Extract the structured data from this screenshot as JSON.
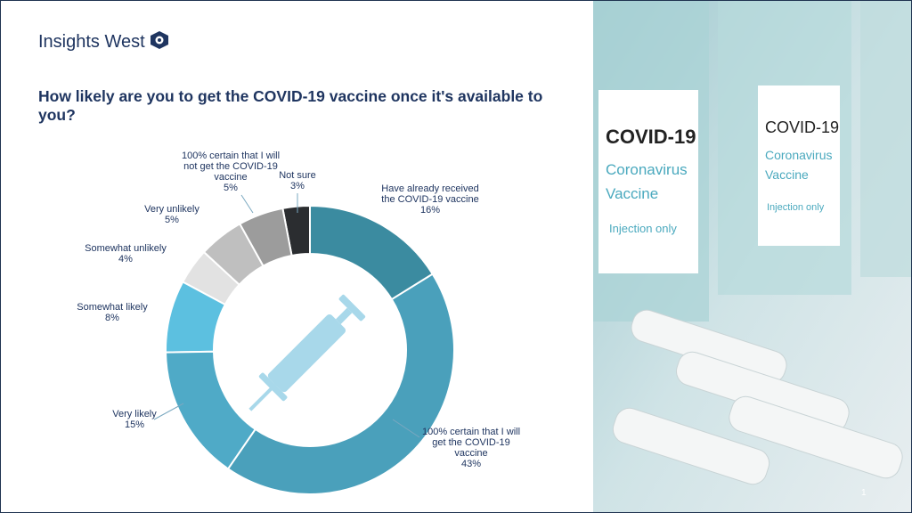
{
  "brand": "Insights West",
  "page_number": "1",
  "photo": {
    "label_line1": "COVID-19",
    "label_line2": "Coronavirus",
    "label_line3": "Vaccine",
    "label_line4": "Injection only"
  },
  "chart_data": {
    "type": "donut",
    "title": "How likely are you to get the COVID-19 vaccine once it's available to you?",
    "categories": [
      "Have already received the COVID-19 vaccine",
      "100% certain that I will get the COVID-19 vaccine",
      "Very likely",
      "Somewhat likely",
      "Somewhat unlikely",
      "Very unlikely",
      "100% certain that I will not get the COVID-19 vaccine",
      "Not sure"
    ],
    "values": [
      16,
      43,
      15,
      8,
      4,
      5,
      5,
      3
    ],
    "value_labels": [
      "16%",
      "43%",
      "15%",
      "8%",
      "4%",
      "5%",
      "5%",
      "3%"
    ],
    "colors": [
      "#3b8ba0",
      "#4aa0bb",
      "#4faac7",
      "#5cc0e0",
      "#e2e2e2",
      "#bfbfbf",
      "#9c9c9c",
      "#2b2d30"
    ]
  }
}
